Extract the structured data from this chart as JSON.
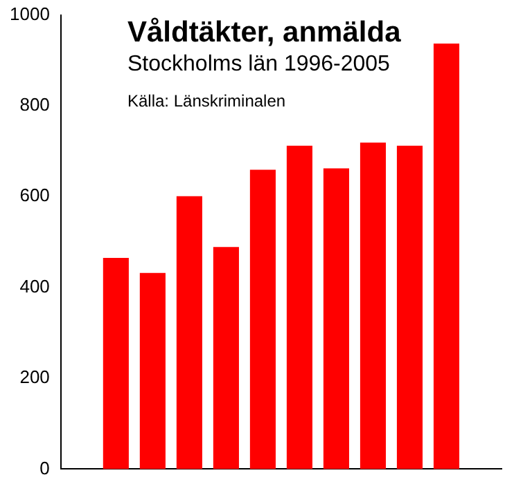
{
  "chart_data": {
    "type": "bar",
    "title": "Våldtäkter, anmälda",
    "subtitle": "Stockholms län 1996-2005",
    "annotations": [
      "Källa:  Länskriminalen"
    ],
    "categories": [
      null,
      null,
      null,
      null,
      null,
      null,
      null,
      null,
      null,
      null
    ],
    "values": [
      465,
      432,
      601,
      489,
      659,
      712,
      662,
      719,
      712,
      937
    ],
    "color": "#ff0000",
    "ylim": [
      0,
      1000
    ],
    "yticks": [
      0,
      200,
      400,
      600,
      800,
      1000
    ],
    "grid": false,
    "legend": false
  }
}
